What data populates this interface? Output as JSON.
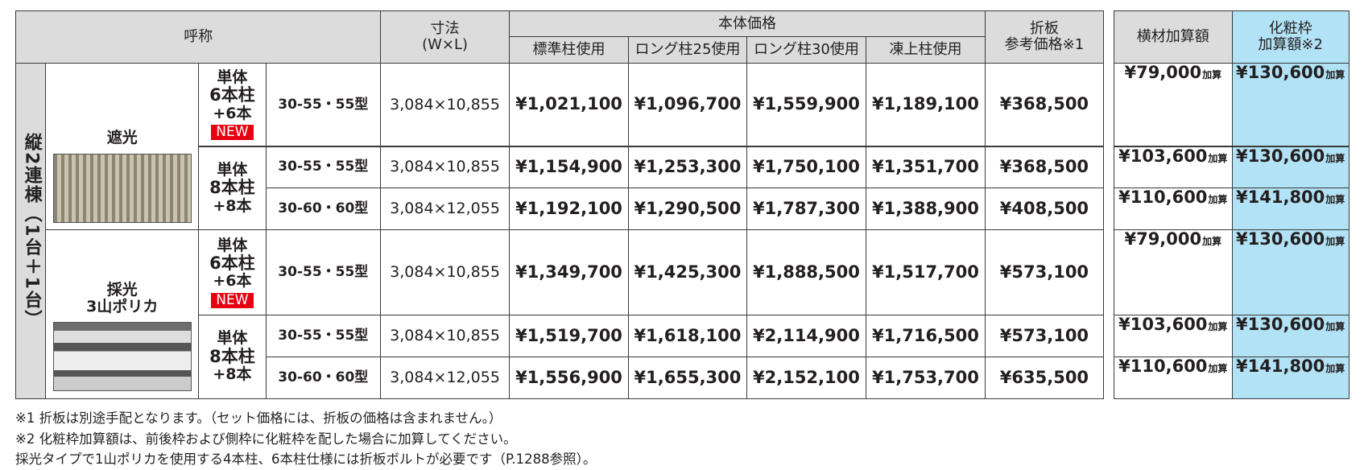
{
  "header": {
    "name": "呼称",
    "size": [
      "寸法",
      "(W×L)"
    ],
    "body_price": "本体価格",
    "body_cols": [
      "標準柱使用",
      "ロング柱25使用",
      "ロング柱30使用",
      "凍上柱使用"
    ],
    "fold_plate": [
      "折板",
      "参考価格※1"
    ],
    "cross": "横材加算額",
    "cosmetic": [
      "化粧枠",
      "加算額※2"
    ]
  },
  "group_label": "縦2連棟（1台＋1台）",
  "groups": [
    {
      "type": [
        "遮光"
      ],
      "configs": [
        {
          "label": [
            "単体",
            "6本柱",
            "+6本"
          ],
          "badge": "NEW",
          "rows": [
            {
              "model": "30-55・55型",
              "size": "3,084×10,855",
              "prices": [
                "¥1,021,100",
                "¥1,096,700",
                "¥1,559,900",
                "¥1,189,100"
              ],
              "fold": "¥368,500",
              "cross": "¥79,000",
              "cross_suffix": "加算",
              "cosmetic": "¥130,600",
              "cosmetic_suffix": "加算"
            }
          ]
        },
        {
          "label": [
            "単体",
            "8本柱",
            "+8本"
          ],
          "rows": [
            {
              "model": "30-55・55型",
              "size": "3,084×10,855",
              "prices": [
                "¥1,154,900",
                "¥1,253,300",
                "¥1,750,100",
                "¥1,351,700"
              ],
              "fold": "¥368,500",
              "cross": "¥103,600",
              "cross_suffix": "加算",
              "cosmetic": "¥130,600",
              "cosmetic_suffix": "加算"
            },
            {
              "model": "30-60・60型",
              "size": "3,084×12,055",
              "prices": [
                "¥1,192,100",
                "¥1,290,500",
                "¥1,787,300",
                "¥1,388,900"
              ],
              "fold": "¥408,500",
              "cross": "¥110,600",
              "cross_suffix": "加算",
              "cosmetic": "¥141,800",
              "cosmetic_suffix": "加算"
            }
          ]
        }
      ]
    },
    {
      "type": [
        "採光",
        "3山ポリカ"
      ],
      "configs": [
        {
          "label": [
            "単体",
            "6本柱",
            "+6本"
          ],
          "badge": "NEW",
          "rows": [
            {
              "model": "30-55・55型",
              "size": "3,084×10,855",
              "prices": [
                "¥1,349,700",
                "¥1,425,300",
                "¥1,888,500",
                "¥1,517,700"
              ],
              "fold": "¥573,100",
              "cross": "¥79,000",
              "cross_suffix": "加算",
              "cosmetic": "¥130,600",
              "cosmetic_suffix": "加算"
            }
          ]
        },
        {
          "label": [
            "単体",
            "8本柱",
            "+8本"
          ],
          "rows": [
            {
              "model": "30-55・55型",
              "size": "3,084×10,855",
              "prices": [
                "¥1,519,700",
                "¥1,618,100",
                "¥2,114,900",
                "¥1,716,500"
              ],
              "fold": "¥573,100",
              "cross": "¥103,600",
              "cross_suffix": "加算",
              "cosmetic": "¥130,600",
              "cosmetic_suffix": "加算"
            },
            {
              "model": "30-60・60型",
              "size": "3,084×12,055",
              "prices": [
                "¥1,556,900",
                "¥1,655,300",
                "¥2,152,100",
                "¥1,753,700"
              ],
              "fold": "¥635,500",
              "cross": "¥110,600",
              "cross_suffix": "加算",
              "cosmetic": "¥141,800",
              "cosmetic_suffix": "加算"
            }
          ]
        }
      ]
    }
  ],
  "footnotes": [
    "※1 折板は別途手配となります。（セット価格には、折板の価格は含まれません。）",
    "※2 化粧枠加算額は、前後枠および側枠に化粧枠を配した場合に加算してください。",
    "採光タイプで1山ポリカを使用する4本柱、6本柱仕様には折板ボルトが必要です（P.1288参照）。"
  ]
}
